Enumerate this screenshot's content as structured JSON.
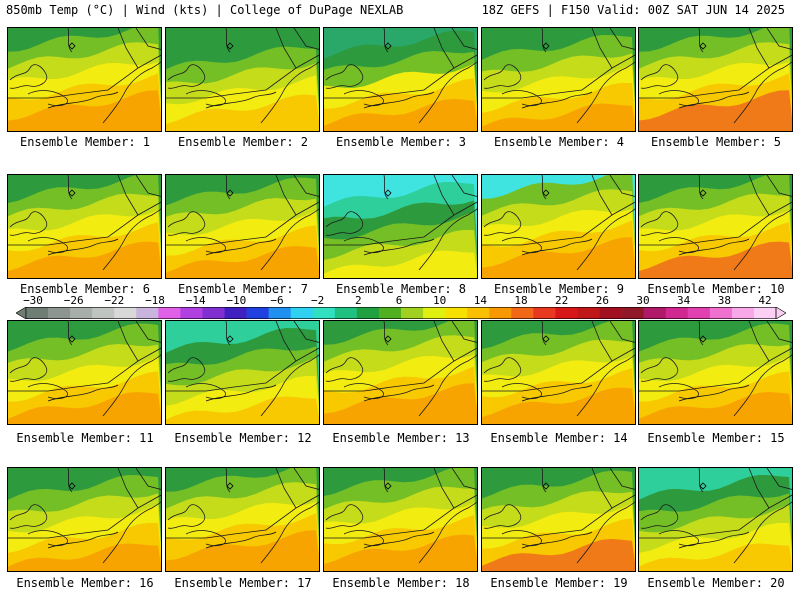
{
  "header": {
    "left": "850mb Temp (°C) | Wind (kts) | College of DuPage NEXLAB",
    "right": "18Z GEFS | F150 Valid: 00Z SAT JUN 14 2025"
  },
  "colorbar": {
    "tick_labels": [
      "−30",
      "−26",
      "−22",
      "−18",
      "−14",
      "−10",
      "−6",
      "−2",
      "2",
      "6",
      "10",
      "14",
      "18",
      "22",
      "26",
      "30",
      "34",
      "38",
      "42"
    ],
    "colors": [
      "#6e7e75",
      "#8c958f",
      "#a8aea9",
      "#c0c4c1",
      "#d8d8d8",
      "#c8b4dc",
      "#e060e8",
      "#b040e0",
      "#8030d0",
      "#4020c0",
      "#2040e0",
      "#2090f0",
      "#30d0f0",
      "#30e0c0",
      "#20c080",
      "#20a040",
      "#50b020",
      "#a0d020",
      "#e0f010",
      "#f8e000",
      "#f8c000",
      "#f89800",
      "#f06818",
      "#e83820",
      "#d81818",
      "#c01818",
      "#a01020",
      "#901828",
      "#b01868",
      "#d02890",
      "#e040b0",
      "#f070d0",
      "#f8a8e8",
      "#fcd0f4"
    ]
  },
  "panels": [
    {
      "label": "Ensemble Member: 1"
    },
    {
      "label": "Ensemble Member: 2"
    },
    {
      "label": "Ensemble Member: 3"
    },
    {
      "label": "Ensemble Member: 4"
    },
    {
      "label": "Ensemble Member: 5"
    },
    {
      "label": "Ensemble Member: 6"
    },
    {
      "label": "Ensemble Member: 7"
    },
    {
      "label": "Ensemble Member: 8"
    },
    {
      "label": "Ensemble Member: 9"
    },
    {
      "label": "Ensemble Member: 10"
    },
    {
      "label": "Ensemble Member: 11"
    },
    {
      "label": "Ensemble Member: 12"
    },
    {
      "label": "Ensemble Member: 13"
    },
    {
      "label": "Ensemble Member: 14"
    },
    {
      "label": "Ensemble Member: 15"
    },
    {
      "label": "Ensemble Member: 16"
    },
    {
      "label": "Ensemble Member: 17"
    },
    {
      "label": "Ensemble Member: 18"
    },
    {
      "label": "Ensemble Member: 19"
    },
    {
      "label": "Ensemble Member: 20"
    }
  ],
  "map_colors": {
    "cool_green": "#29a86a",
    "teal": "#2ecf9a",
    "cyan": "#3fe3e0",
    "green": "#2e9a3e",
    "light_green": "#74bf26",
    "yellow_green": "#c4dc1a",
    "yellow": "#f2ec10",
    "gold": "#f8c800",
    "orange": "#f8a400",
    "dark_orange": "#f07a18"
  }
}
